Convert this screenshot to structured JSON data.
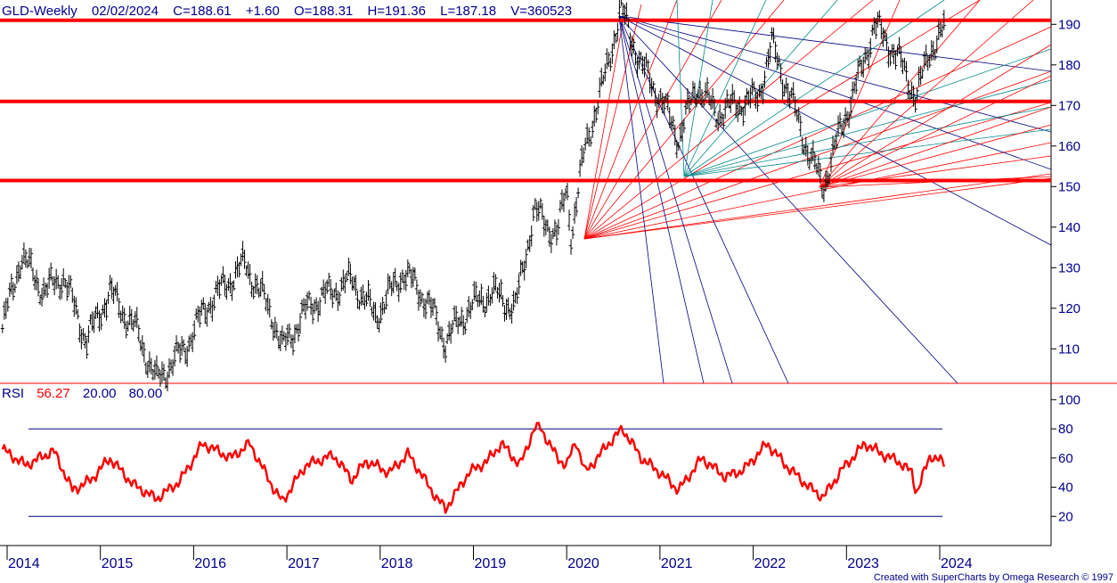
{
  "header": {
    "symbol": "GLD-Weekly",
    "date": "02/02/2024",
    "close": "C=188.61",
    "change": "+1.60",
    "open": "O=188.31",
    "high": "H=191.36",
    "low": "L=187.18",
    "volume": "V=360523"
  },
  "rsi_header": {
    "name": "RSI",
    "value": "56.27",
    "lower": "20.00",
    "upper": "80.00"
  },
  "footer": "Created with SuperCharts by Omega Research © 1997",
  "colors": {
    "price_bars": "#000000",
    "support_lines": "#ff0000",
    "rsi_line": "#ff0000",
    "axis_text": "#00008b",
    "gann_red": "#ff0000",
    "gann_teal": "#008b8b",
    "gann_navy": "#000080"
  },
  "chart_data": [
    {
      "type": "line",
      "panel": "price",
      "x_ticks": [
        "2014",
        "2015",
        "2016",
        "2017",
        "2018",
        "2019",
        "2020",
        "2021",
        "2022",
        "2023",
        "2024"
      ],
      "y_ticks": [
        110,
        120,
        130,
        140,
        150,
        160,
        170,
        180,
        190
      ],
      "ylim": [
        101.5,
        196
      ],
      "horizontal_levels": [
        191,
        171,
        151.5
      ],
      "series": [
        {
          "points": [
            [
              2013.95,
              115
            ],
            [
              2014.15,
              133
            ],
            [
              2014.4,
              124
            ],
            [
              2014.6,
              128
            ],
            [
              2014.85,
              112
            ],
            [
              2015.1,
              124
            ],
            [
              2015.4,
              114
            ],
            [
              2015.6,
              102
            ],
            [
              2015.9,
              110
            ],
            [
              2016.15,
              121
            ],
            [
              2016.55,
              131
            ],
            [
              2016.85,
              118
            ],
            [
              2016.95,
              110
            ],
            [
              2017.25,
              121
            ],
            [
              2017.7,
              127
            ],
            [
              2017.95,
              118
            ],
            [
              2018.25,
              129
            ],
            [
              2018.5,
              122
            ],
            [
              2018.7,
              112
            ],
            [
              2018.95,
              120
            ],
            [
              2019.2,
              124
            ],
            [
              2019.45,
              120
            ],
            [
              2019.65,
              144
            ],
            [
              2019.9,
              138
            ],
            [
              2020.0,
              150
            ],
            [
              2020.05,
              138
            ],
            [
              2020.2,
              160
            ],
            [
              2020.4,
              176
            ],
            [
              2020.58,
              194
            ],
            [
              2020.8,
              180
            ],
            [
              2021.0,
              172
            ],
            [
              2021.2,
              162
            ],
            [
              2021.4,
              175
            ],
            [
              2021.6,
              168
            ],
            [
              2021.8,
              170
            ],
            [
              2022.05,
              172
            ],
            [
              2022.2,
              185
            ],
            [
              2022.4,
              172
            ],
            [
              2022.6,
              158
            ],
            [
              2022.75,
              150
            ],
            [
              2022.95,
              165
            ],
            [
              2023.15,
              178
            ],
            [
              2023.3,
              190
            ],
            [
              2023.55,
              182
            ],
            [
              2023.75,
              172
            ],
            [
              2023.9,
              184
            ],
            [
              2024.05,
              188.6
            ]
          ]
        }
      ]
    },
    {
      "type": "line",
      "panel": "RSI",
      "x_ticks": [
        "2014",
        "2015",
        "2016",
        "2017",
        "2018",
        "2019",
        "2020",
        "2021",
        "2022",
        "2023",
        "2024"
      ],
      "y_ticks": [
        20,
        40,
        60,
        80,
        100
      ],
      "ylim": [
        0,
        110
      ],
      "bands": [
        20,
        80
      ],
      "series": [
        {
          "name": "RSI",
          "points": [
            [
              2013.95,
              66
            ],
            [
              2014.2,
              55
            ],
            [
              2014.5,
              65
            ],
            [
              2014.7,
              38
            ],
            [
              2014.9,
              45
            ],
            [
              2015.1,
              60
            ],
            [
              2015.35,
              42
            ],
            [
              2015.6,
              32
            ],
            [
              2015.85,
              44
            ],
            [
              2016.1,
              70
            ],
            [
              2016.4,
              60
            ],
            [
              2016.6,
              70
            ],
            [
              2016.85,
              40
            ],
            [
              2016.95,
              30
            ],
            [
              2017.2,
              55
            ],
            [
              2017.5,
              62
            ],
            [
              2017.7,
              45
            ],
            [
              2017.85,
              58
            ],
            [
              2018.1,
              50
            ],
            [
              2018.3,
              63
            ],
            [
              2018.6,
              33
            ],
            [
              2018.7,
              25
            ],
            [
              2018.95,
              50
            ],
            [
              2019.15,
              58
            ],
            [
              2019.3,
              70
            ],
            [
              2019.5,
              55
            ],
            [
              2019.65,
              80
            ],
            [
              2019.7,
              83
            ],
            [
              2019.9,
              60
            ],
            [
              2020.0,
              55
            ],
            [
              2020.1,
              72
            ],
            [
              2020.2,
              50
            ],
            [
              2020.45,
              70
            ],
            [
              2020.6,
              80
            ],
            [
              2020.8,
              60
            ],
            [
              2021.0,
              50
            ],
            [
              2021.2,
              38
            ],
            [
              2021.45,
              60
            ],
            [
              2021.7,
              47
            ],
            [
              2021.9,
              52
            ],
            [
              2022.15,
              70
            ],
            [
              2022.35,
              55
            ],
            [
              2022.6,
              40
            ],
            [
              2022.75,
              33
            ],
            [
              2022.95,
              52
            ],
            [
              2023.2,
              70
            ],
            [
              2023.4,
              62
            ],
            [
              2023.55,
              58
            ],
            [
              2023.7,
              50
            ],
            [
              2023.75,
              36
            ],
            [
              2023.9,
              62
            ],
            [
              2024.05,
              56.27
            ]
          ]
        }
      ]
    }
  ]
}
